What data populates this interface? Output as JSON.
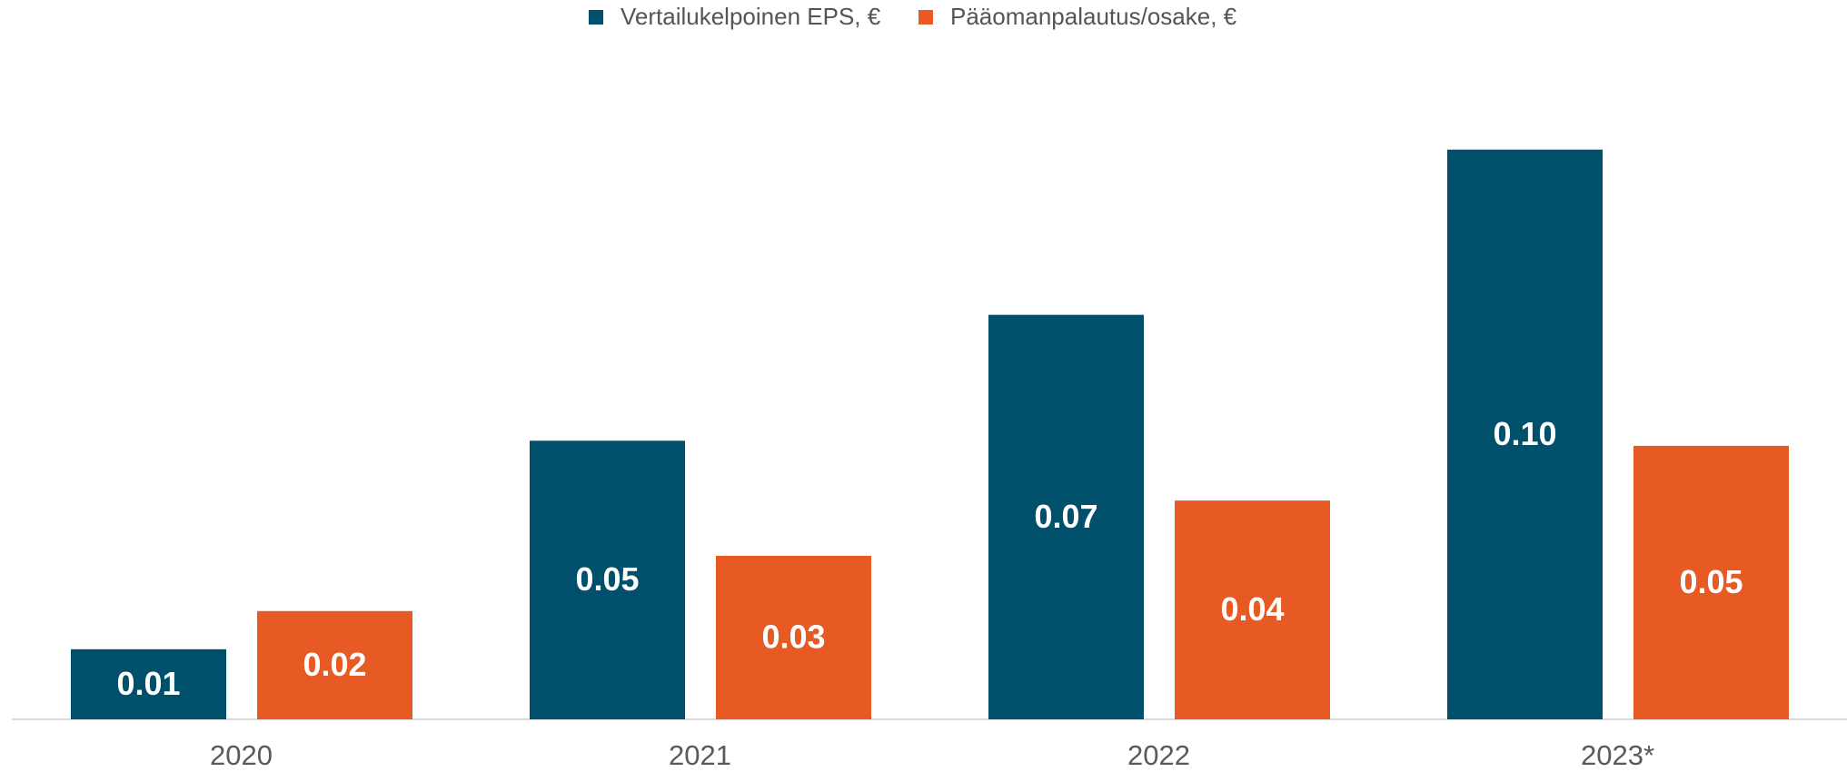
{
  "chart_data": {
    "type": "bar",
    "categories": [
      "2020",
      "2021",
      "2022",
      "2023*"
    ],
    "series": [
      {
        "name": "Vertailukelpoinen EPS, €",
        "color": "#00506b",
        "values": [
          0.0123,
          0.0489,
          0.071,
          0.1
        ],
        "value_labels": [
          "0.01",
          "0.05",
          "0.07",
          "0.10"
        ]
      },
      {
        "name": "Pääomanpalautus/osake, €",
        "color": "#e85a23",
        "values": [
          0.019,
          0.0287,
          0.0384,
          0.048
        ],
        "value_labels": [
          "0.02",
          "0.03",
          "0.04",
          "0.05"
        ]
      }
    ],
    "ylim": [
      0,
      0.11
    ],
    "legend": "top"
  }
}
